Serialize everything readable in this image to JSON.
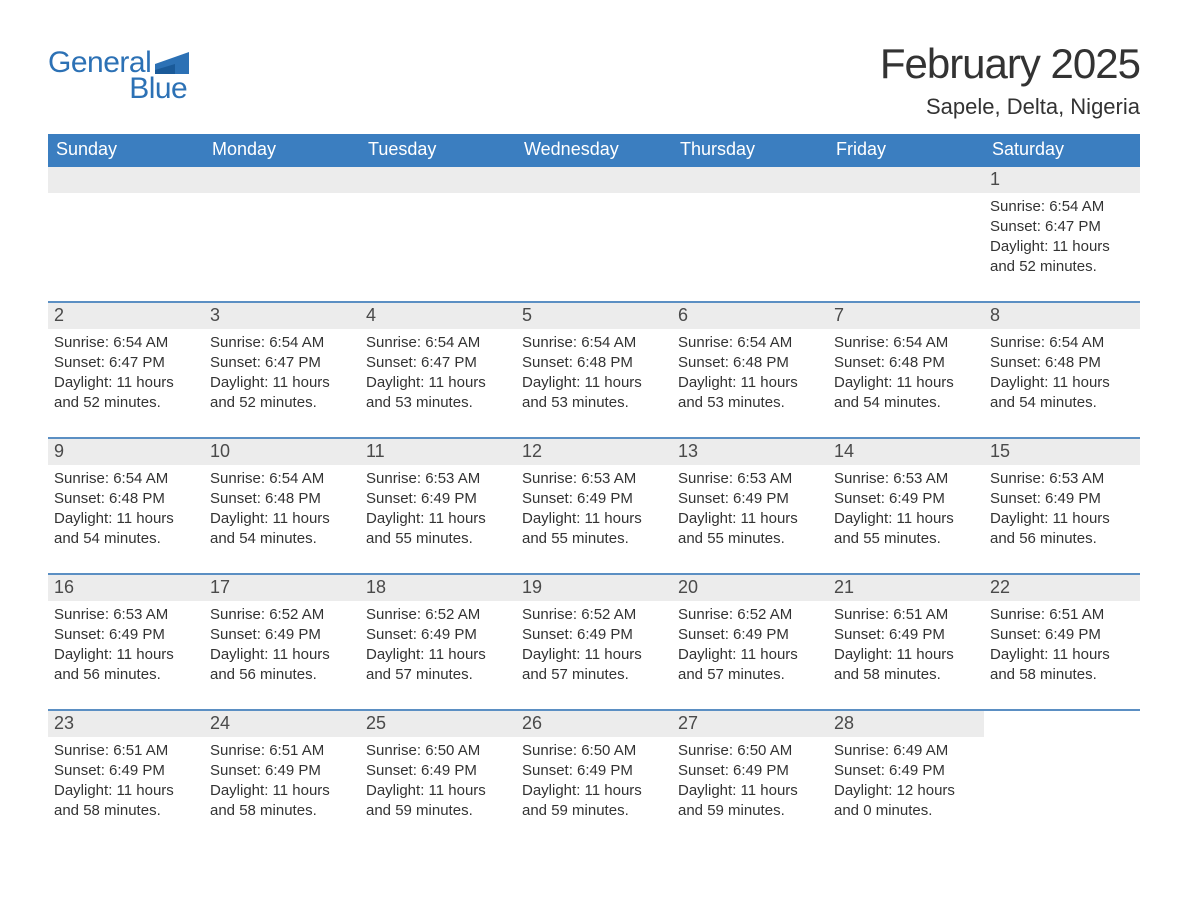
{
  "logo": {
    "text_general": "General",
    "text_blue": "Blue",
    "accent_color": "#2c71b5"
  },
  "title": "February 2025",
  "location": "Sapele, Delta, Nigeria",
  "colors": {
    "header_bg": "#3b7ec0",
    "header_text": "#ffffff",
    "week_border": "#5b8fc3",
    "daynum_bg": "#ececec",
    "body_text": "#333333"
  },
  "weekdays": [
    "Sunday",
    "Monday",
    "Tuesday",
    "Wednesday",
    "Thursday",
    "Friday",
    "Saturday"
  ],
  "labels": {
    "sunrise": "Sunrise:",
    "sunset": "Sunset:",
    "daylight": "Daylight:"
  },
  "weeks": [
    [
      null,
      null,
      null,
      null,
      null,
      null,
      {
        "day": "1",
        "sunrise": "6:54 AM",
        "sunset": "6:47 PM",
        "daylight": "11 hours and 52 minutes."
      }
    ],
    [
      {
        "day": "2",
        "sunrise": "6:54 AM",
        "sunset": "6:47 PM",
        "daylight": "11 hours and 52 minutes."
      },
      {
        "day": "3",
        "sunrise": "6:54 AM",
        "sunset": "6:47 PM",
        "daylight": "11 hours and 52 minutes."
      },
      {
        "day": "4",
        "sunrise": "6:54 AM",
        "sunset": "6:47 PM",
        "daylight": "11 hours and 53 minutes."
      },
      {
        "day": "5",
        "sunrise": "6:54 AM",
        "sunset": "6:48 PM",
        "daylight": "11 hours and 53 minutes."
      },
      {
        "day": "6",
        "sunrise": "6:54 AM",
        "sunset": "6:48 PM",
        "daylight": "11 hours and 53 minutes."
      },
      {
        "day": "7",
        "sunrise": "6:54 AM",
        "sunset": "6:48 PM",
        "daylight": "11 hours and 54 minutes."
      },
      {
        "day": "8",
        "sunrise": "6:54 AM",
        "sunset": "6:48 PM",
        "daylight": "11 hours and 54 minutes."
      }
    ],
    [
      {
        "day": "9",
        "sunrise": "6:54 AM",
        "sunset": "6:48 PM",
        "daylight": "11 hours and 54 minutes."
      },
      {
        "day": "10",
        "sunrise": "6:54 AM",
        "sunset": "6:48 PM",
        "daylight": "11 hours and 54 minutes."
      },
      {
        "day": "11",
        "sunrise": "6:53 AM",
        "sunset": "6:49 PM",
        "daylight": "11 hours and 55 minutes."
      },
      {
        "day": "12",
        "sunrise": "6:53 AM",
        "sunset": "6:49 PM",
        "daylight": "11 hours and 55 minutes."
      },
      {
        "day": "13",
        "sunrise": "6:53 AM",
        "sunset": "6:49 PM",
        "daylight": "11 hours and 55 minutes."
      },
      {
        "day": "14",
        "sunrise": "6:53 AM",
        "sunset": "6:49 PM",
        "daylight": "11 hours and 55 minutes."
      },
      {
        "day": "15",
        "sunrise": "6:53 AM",
        "sunset": "6:49 PM",
        "daylight": "11 hours and 56 minutes."
      }
    ],
    [
      {
        "day": "16",
        "sunrise": "6:53 AM",
        "sunset": "6:49 PM",
        "daylight": "11 hours and 56 minutes."
      },
      {
        "day": "17",
        "sunrise": "6:52 AM",
        "sunset": "6:49 PM",
        "daylight": "11 hours and 56 minutes."
      },
      {
        "day": "18",
        "sunrise": "6:52 AM",
        "sunset": "6:49 PM",
        "daylight": "11 hours and 57 minutes."
      },
      {
        "day": "19",
        "sunrise": "6:52 AM",
        "sunset": "6:49 PM",
        "daylight": "11 hours and 57 minutes."
      },
      {
        "day": "20",
        "sunrise": "6:52 AM",
        "sunset": "6:49 PM",
        "daylight": "11 hours and 57 minutes."
      },
      {
        "day": "21",
        "sunrise": "6:51 AM",
        "sunset": "6:49 PM",
        "daylight": "11 hours and 58 minutes."
      },
      {
        "day": "22",
        "sunrise": "6:51 AM",
        "sunset": "6:49 PM",
        "daylight": "11 hours and 58 minutes."
      }
    ],
    [
      {
        "day": "23",
        "sunrise": "6:51 AM",
        "sunset": "6:49 PM",
        "daylight": "11 hours and 58 minutes."
      },
      {
        "day": "24",
        "sunrise": "6:51 AM",
        "sunset": "6:49 PM",
        "daylight": "11 hours and 58 minutes."
      },
      {
        "day": "25",
        "sunrise": "6:50 AM",
        "sunset": "6:49 PM",
        "daylight": "11 hours and 59 minutes."
      },
      {
        "day": "26",
        "sunrise": "6:50 AM",
        "sunset": "6:49 PM",
        "daylight": "11 hours and 59 minutes."
      },
      {
        "day": "27",
        "sunrise": "6:50 AM",
        "sunset": "6:49 PM",
        "daylight": "11 hours and 59 minutes."
      },
      {
        "day": "28",
        "sunrise": "6:49 AM",
        "sunset": "6:49 PM",
        "daylight": "12 hours and 0 minutes."
      },
      null
    ]
  ]
}
